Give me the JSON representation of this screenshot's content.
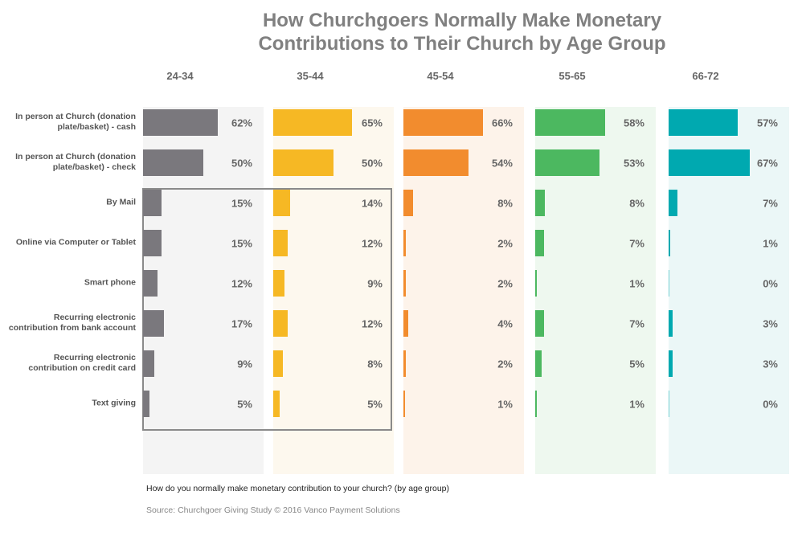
{
  "chart_data": {
    "type": "bar",
    "title": [
      "How Churchgoers Normally Make Monetary",
      "Contributions to Their Church by Age Group"
    ],
    "categories": [
      "In person at Church (donation plate/basket) - cash",
      "In person at Church (donation plate/basket) - check",
      "By Mail",
      "Online via Computer or Tablet",
      "Smart phone",
      "Recurring electronic contribution from bank account",
      "Recurring electronic contribution on credit card",
      "Text giving"
    ],
    "xlim": [
      0,
      100
    ],
    "series": [
      {
        "name": "24-34",
        "color": "#7a787d",
        "panel_color": "#f4f4f4",
        "values": [
          62,
          50,
          15,
          15,
          12,
          17,
          9,
          5
        ],
        "value_labels": [
          "62%",
          "50%",
          "15%",
          "15%",
          "12%",
          "17%",
          "9%",
          "5%"
        ]
      },
      {
        "name": "35-44",
        "color": "#f6b824",
        "panel_color": "#fdf8ee",
        "values": [
          65,
          50,
          14,
          12,
          9,
          12,
          8,
          5
        ],
        "value_labels": [
          "65%",
          "50%",
          "14%",
          "12%",
          "9%",
          "12%",
          "8%",
          "5%"
        ]
      },
      {
        "name": "45-54",
        "color": "#f28c2e",
        "panel_color": "#fdf3ea",
        "values": [
          66,
          54,
          8,
          2,
          2,
          4,
          2,
          1
        ],
        "value_labels": [
          "66%",
          "54%",
          "8%",
          "2%",
          "2%",
          "4%",
          "2%",
          "1%"
        ]
      },
      {
        "name": "55-65",
        "color": "#4cb860",
        "panel_color": "#eef8ef",
        "values": [
          58,
          53,
          8,
          7,
          1,
          7,
          5,
          1
        ],
        "value_labels": [
          "58%",
          "53%",
          "8%",
          "7%",
          "1%",
          "7%",
          "5%",
          "1%"
        ]
      },
      {
        "name": "66-72",
        "color": "#00a9b0",
        "panel_color": "#ebf7f7",
        "values": [
          57,
          67,
          7,
          1,
          0,
          3,
          3,
          0
        ],
        "value_labels": [
          "57%",
          "67%",
          "7%",
          "1%",
          "0%",
          "3%",
          "3%",
          "0%"
        ]
      }
    ],
    "question": "How do you normally make monetary contribution to your church? (by age group)",
    "source": "Source: Churchgoer Giving Study © 2016 Vanco Payment Solutions"
  }
}
